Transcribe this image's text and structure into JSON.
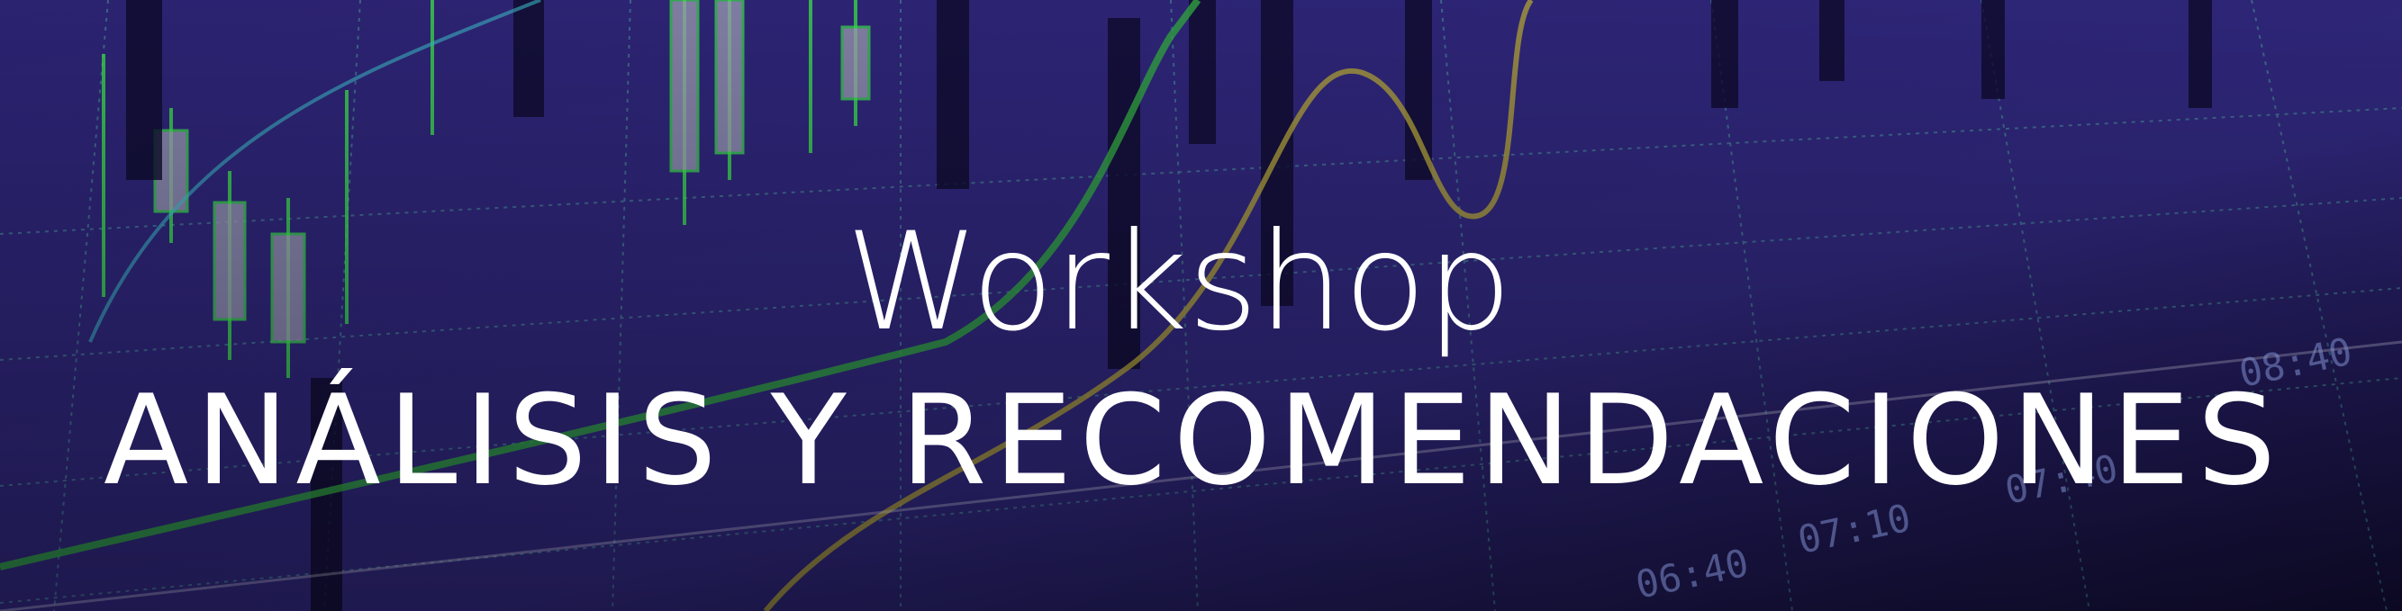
{
  "banner": {
    "title": "Workshop",
    "subtitle": "ANÁLISIS Y RECOMENDACIONES",
    "time_labels": [
      "06:40",
      "07:10",
      "07:40",
      "08:40"
    ]
  }
}
